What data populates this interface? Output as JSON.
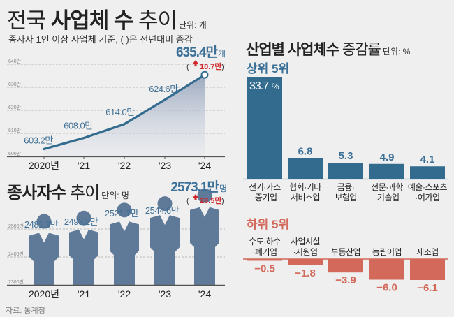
{
  "header": {
    "title_normal_1": "전국 ",
    "title_bold": "사업체 수",
    "title_normal_2": " 추이",
    "unit": "단위: 개",
    "subtitle": "종사자 1인 이상 사업체 기준, ( )은 전년대비 증감"
  },
  "chart_data": [
    {
      "type": "area",
      "title": "전국 사업체 수 추이",
      "unit": "개",
      "x": [
        "2020년",
        "'21",
        "'22",
        "'23",
        "'24"
      ],
      "values": [
        603.2,
        608.0,
        614.0,
        624.6,
        635.4
      ],
      "value_labels": [
        "603.2만",
        "608.0만",
        "614.0만",
        "624.6만",
        "635.4만"
      ],
      "last_value_label": "635.4만",
      "last_value_suffix": "개",
      "change_label": "10.7만",
      "ylim": [
        600,
        640
      ],
      "y_ticks": [
        600,
        610,
        620,
        630,
        640
      ],
      "y_tick_labels": [
        "600만",
        "610만",
        "620만",
        "630만",
        "640만"
      ],
      "grid": true,
      "line_color": "#336b8f",
      "change_color": "#d0252b"
    },
    {
      "type": "bar",
      "subtype": "pictogram",
      "title": "종사자수 추이",
      "unit_label": "단위: 명",
      "x": [
        "2020년",
        "'21",
        "'22",
        "'23",
        "'24"
      ],
      "values": [
        2481.3,
        2493.2,
        2521.7,
        2544.6,
        2573.1
      ],
      "value_labels": [
        "2481.3만",
        "2493.2만",
        "2521.7만",
        "2544.6만",
        "2573.1만"
      ],
      "last_value_label": "2573.1만",
      "last_value_suffix": "명",
      "change_label": "28.5만",
      "ylim": [
        2300,
        2600
      ],
      "y_ticks": [
        2300,
        2400,
        2500
      ],
      "y_tick_labels": [
        "2300만",
        "2400만",
        "2500만"
      ],
      "grid": true,
      "figure_color": "#5f7a98"
    },
    {
      "type": "bar",
      "title": "산업별 사업체수 증감률",
      "unit_label": "단위: %",
      "top_section_label": "상위 5위",
      "bottom_section_label": "하위 5위",
      "top": {
        "categories": [
          [
            "전기·가스",
            "·증기업"
          ],
          [
            "협회·기타",
            "서비스업"
          ],
          [
            "금융·",
            "보험업"
          ],
          [
            "전문·과학",
            "·기술업"
          ],
          [
            "예술·스포츠",
            "·여가업"
          ]
        ],
        "values": [
          33.7,
          6.8,
          5.3,
          4.9,
          4.1
        ],
        "value_labels": [
          "33.7",
          "6.8",
          "5.3",
          "4.9",
          "4.1"
        ],
        "first_suffix": "%",
        "color": "#336b8f"
      },
      "bottom": {
        "categories": [
          [
            "수도·하수",
            "·폐기업"
          ],
          [
            "사업시설",
            "·지원업"
          ],
          [
            "부동산업"
          ],
          [
            "농림어업"
          ],
          [
            "제조업"
          ]
        ],
        "values": [
          -0.5,
          -1.8,
          -3.9,
          -6.0,
          -6.1
        ],
        "value_labels": [
          "−0.5",
          "−1.8",
          "−3.9",
          "−6.0",
          "−6.1"
        ],
        "color": "#d2695a"
      }
    }
  ],
  "footer": {
    "source": "자료: 통계청"
  }
}
